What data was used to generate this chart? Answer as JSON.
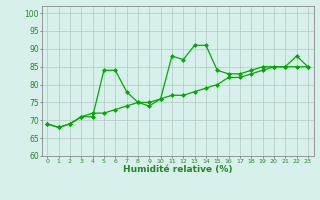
{
  "xlabel": "Humidité relative (%)",
  "background_color": "#d8f0ec",
  "grid_color": "#b0c8c0",
  "line_color": "#00aa00",
  "marker": "D",
  "markersize": 2.0,
  "linewidth": 0.9,
  "ylim": [
    60,
    102
  ],
  "xlim": [
    -0.5,
    23.5
  ],
  "yticks": [
    60,
    65,
    70,
    75,
    80,
    85,
    90,
    95,
    100
  ],
  "xticks": [
    0,
    1,
    2,
    3,
    4,
    5,
    6,
    7,
    8,
    9,
    10,
    11,
    12,
    13,
    14,
    15,
    16,
    17,
    18,
    19,
    20,
    21,
    22,
    23
  ],
  "series1_x": [
    0,
    1,
    2,
    3,
    4,
    5,
    6,
    7,
    8,
    9,
    10,
    11,
    12,
    13,
    14,
    15,
    16,
    17,
    18,
    19,
    20,
    21,
    22,
    23
  ],
  "series1_y": [
    69,
    68,
    69,
    71,
    71,
    84,
    84,
    78,
    75,
    74,
    76,
    88,
    87,
    91,
    91,
    84,
    83,
    83,
    84,
    85,
    85,
    85,
    88,
    85
  ],
  "series2_x": [
    0,
    1,
    2,
    3,
    4,
    5,
    6,
    7,
    8,
    9,
    10,
    11,
    12,
    13,
    14,
    15,
    16,
    17,
    18,
    19,
    20,
    21,
    22,
    23
  ],
  "series2_y": [
    69,
    68,
    69,
    71,
    72,
    72,
    73,
    74,
    75,
    75,
    76,
    77,
    77,
    78,
    79,
    80,
    82,
    82,
    83,
    84,
    85,
    85,
    85,
    85
  ]
}
